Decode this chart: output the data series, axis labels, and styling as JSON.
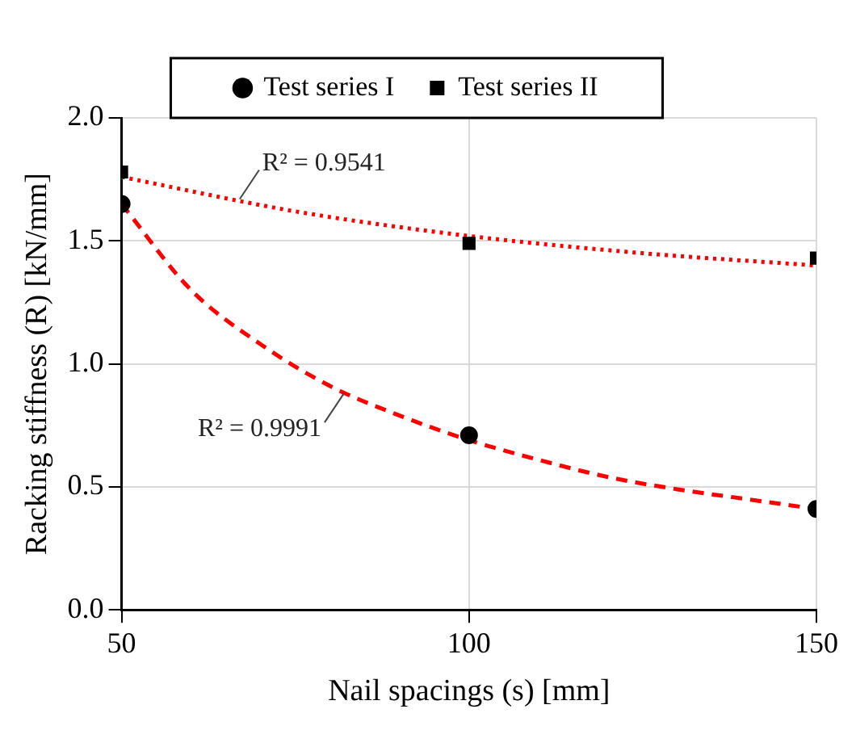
{
  "chart_data": {
    "type": "scatter",
    "xlabel": "Nail spacings (s) [mm]",
    "ylabel": "Racking stiffness (R) [kN/mm]",
    "xlim": [
      50,
      150
    ],
    "xticks": [
      50,
      100,
      150
    ],
    "ylim": [
      0,
      2
    ],
    "yticks": [
      {
        "value": 0,
        "label": "0.0"
      },
      0.5,
      {
        "value": 1,
        "label": "1.0"
      },
      1.5,
      {
        "value": 2,
        "label": "2.0"
      }
    ],
    "grid": true,
    "legend": "top",
    "series": [
      {
        "name": "Test series I",
        "marker": "circle",
        "color": "#000000",
        "x": [
          50,
          100,
          150
        ],
        "values": [
          1.65,
          0.71,
          0.41
        ]
      },
      {
        "name": "Test series II",
        "marker": "square",
        "color": "#000000",
        "x": [
          50,
          100,
          150
        ],
        "values": [
          1.78,
          1.49,
          1.43
        ]
      },
      {
        "type": "line",
        "marker": "none",
        "line_style": "dashed",
        "color": "#ff0000",
        "x": [
          50,
          60,
          70,
          80,
          90,
          100,
          110,
          120,
          130,
          140,
          150
        ],
        "values": [
          1.65,
          1.3,
          1.08,
          0.91,
          0.79,
          0.69,
          0.61,
          0.54,
          0.49,
          0.45,
          0.41
        ]
      },
      {
        "type": "line",
        "marker": "none",
        "line_style": "dotted",
        "color": "#ff0000",
        "x": [
          50,
          75,
          100,
          125,
          150
        ],
        "values": [
          1.76,
          1.62,
          1.52,
          1.45,
          1.4
        ]
      }
    ],
    "annotations": [
      {
        "text": "R² = 0.9541",
        "x": 67,
        "y": 1.67
      },
      {
        "text": "R² = 0.9991",
        "x": 82,
        "y": 0.88
      }
    ]
  }
}
